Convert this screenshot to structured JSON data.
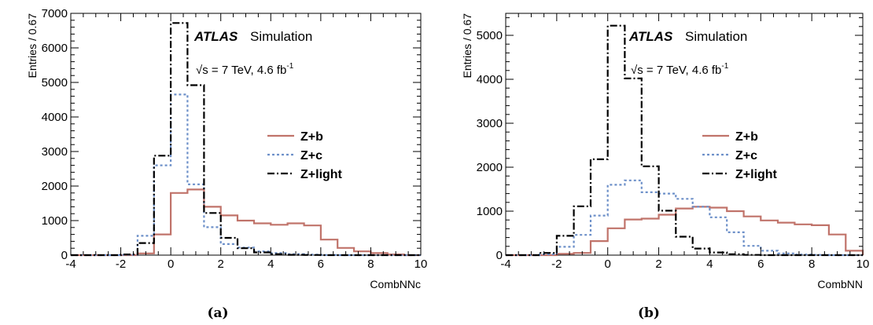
{
  "captions": [
    "(a)",
    "(b)"
  ],
  "chart_data": [
    {
      "type": "line",
      "style": "step-histogram",
      "xlabel": "CombNNc",
      "ylabel": "Entries / 0.67",
      "xlim": [
        -4,
        10
      ],
      "ylim": [
        0,
        7000
      ],
      "x_ticks": [
        -4,
        -2,
        0,
        2,
        4,
        6,
        8,
        10
      ],
      "y_ticks": [
        0,
        1000,
        2000,
        3000,
        4000,
        5000,
        6000,
        7000
      ],
      "bin_edges": [
        -4,
        -3.33,
        -2.67,
        -2,
        -1.33,
        -0.67,
        0,
        0.67,
        1.33,
        2,
        2.67,
        3.33,
        4,
        4.67,
        5.33,
        6,
        6.67,
        7.33,
        8,
        8.67,
        9.33,
        10
      ],
      "annotation": {
        "atlas": "ATLAS",
        "sim": "Simulation",
        "energy": "√s = 7 TeV, 4.6 fb",
        "energy_sup": "-1"
      },
      "legend_position": "right",
      "series": [
        {
          "name": "Z+b",
          "color": "#c0736a",
          "dash": "solid",
          "values": [
            0,
            0,
            0,
            0,
            50,
            600,
            1800,
            1900,
            1400,
            1150,
            1000,
            920,
            880,
            920,
            860,
            450,
            210,
            110,
            60,
            20,
            0
          ]
        },
        {
          "name": "Z+c",
          "color": "#6d90c9",
          "dash": "dotted",
          "values": [
            0,
            0,
            0,
            10,
            560,
            2600,
            4650,
            2050,
            810,
            320,
            220,
            110,
            60,
            30,
            15,
            5,
            0,
            0,
            0,
            0,
            0
          ]
        },
        {
          "name": "Z+light",
          "color": "#000000",
          "dash": "dashdot",
          "values": [
            0,
            0,
            0,
            20,
            350,
            2880,
            6720,
            4920,
            1220,
            500,
            200,
            80,
            30,
            10,
            5,
            0,
            0,
            0,
            0,
            0,
            0
          ]
        }
      ]
    },
    {
      "type": "line",
      "style": "step-histogram",
      "xlabel": "CombNN",
      "ylabel": "Entries / 0.67",
      "xlim": [
        -4,
        10
      ],
      "ylim": [
        0,
        5500
      ],
      "x_ticks": [
        -4,
        -2,
        0,
        2,
        4,
        6,
        8,
        10
      ],
      "y_ticks": [
        0,
        1000,
        2000,
        3000,
        4000,
        5000
      ],
      "bin_edges": [
        -4,
        -3.33,
        -2.67,
        -2,
        -1.33,
        -0.67,
        0,
        0.67,
        1.33,
        2,
        2.67,
        3.33,
        4,
        4.67,
        5.33,
        6,
        6.67,
        7.33,
        8,
        8.67,
        9.33,
        10
      ],
      "annotation": {
        "atlas": "ATLAS",
        "sim": "Simulation",
        "energy": "√s = 7 TeV, 4.6 fb",
        "energy_sup": "-1"
      },
      "legend_position": "right",
      "series": [
        {
          "name": "Z+b",
          "color": "#c0736a",
          "dash": "solid",
          "values": [
            0,
            0,
            0,
            30,
            50,
            320,
            610,
            810,
            830,
            920,
            1060,
            1100,
            1080,
            1000,
            880,
            790,
            740,
            700,
            680,
            470,
            100
          ]
        },
        {
          "name": "Z+c",
          "color": "#6d90c9",
          "dash": "dotted",
          "values": [
            0,
            0,
            20,
            190,
            460,
            900,
            1600,
            1700,
            1430,
            1400,
            1280,
            1100,
            860,
            520,
            210,
            100,
            40,
            15,
            5,
            0,
            0
          ]
        },
        {
          "name": "Z+light",
          "color": "#000000",
          "dash": "dashdot",
          "values": [
            0,
            0,
            50,
            440,
            1110,
            2180,
            5220,
            4020,
            2020,
            1010,
            420,
            150,
            60,
            20,
            5,
            0,
            0,
            0,
            0,
            0,
            0
          ]
        }
      ]
    }
  ]
}
